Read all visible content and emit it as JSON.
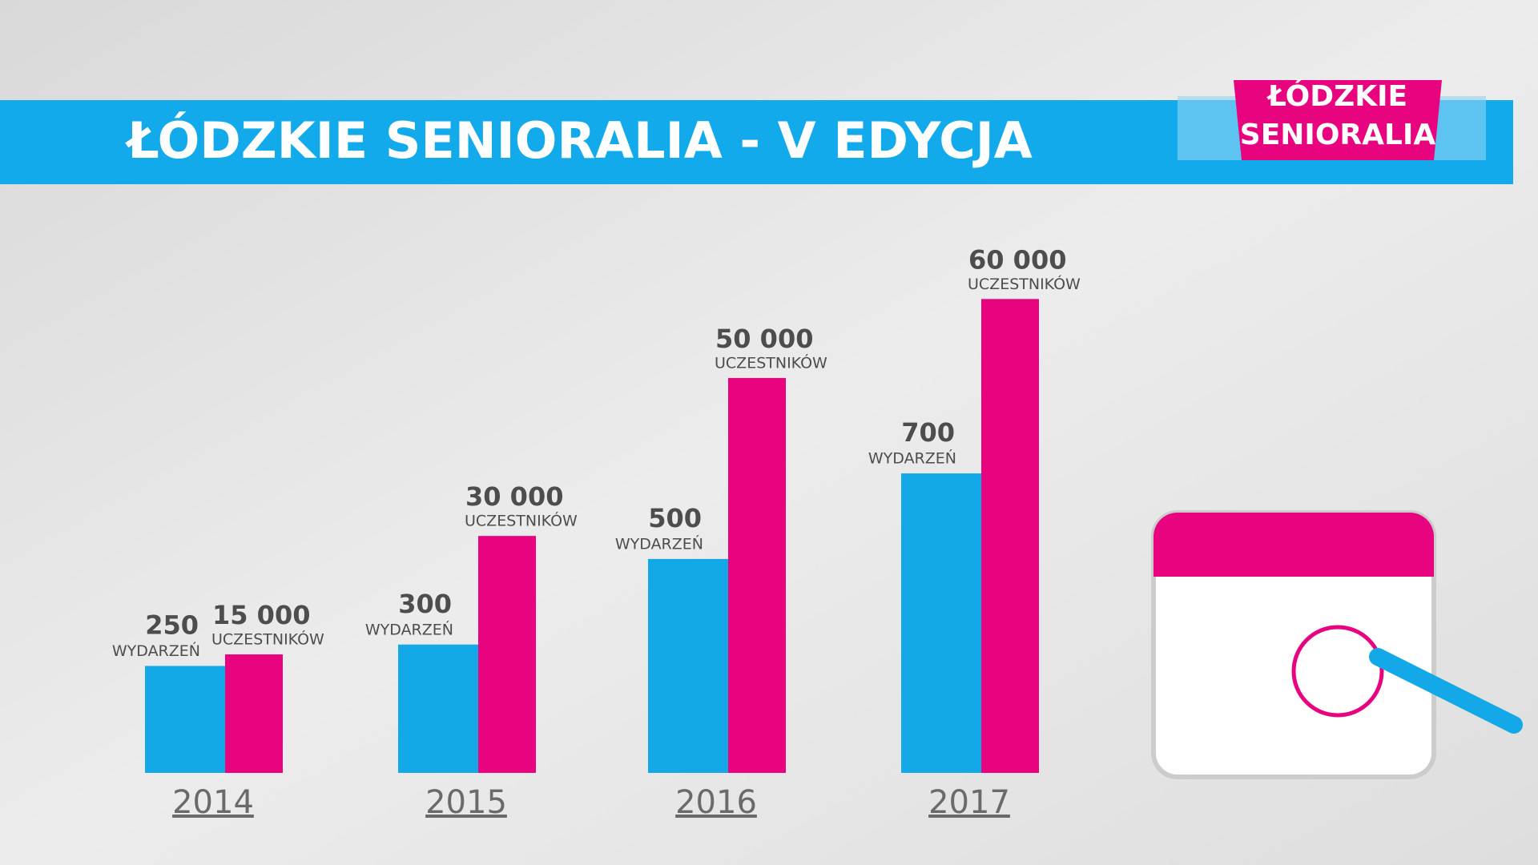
{
  "chart_data": {
    "type": "bar",
    "title": "ŁÓDZKIE SENIORALIA - V EDYCJA",
    "categories": [
      "2014",
      "2015",
      "2016",
      "2017"
    ],
    "series": [
      {
        "name": "WYDARZEŃ",
        "color": "#13a9e8",
        "values": [
          250,
          300,
          500,
          700
        ]
      },
      {
        "name": "UCZESTNIKÓW",
        "color": "#e8047f",
        "axis": "y2",
        "values": [
          15000,
          30000,
          50000,
          60000
        ],
        "value_labels": [
          "15 000",
          "30 000",
          "50 000",
          "60 000"
        ]
      }
    ],
    "ylim": [
      0,
      1200
    ],
    "y2lim": [
      0,
      65000
    ]
  },
  "logo": [
    "ŁÓDZKIE",
    "SENIORALIA"
  ]
}
